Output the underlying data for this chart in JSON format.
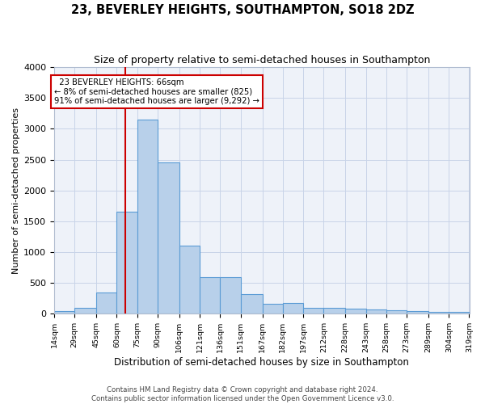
{
  "title": "23, BEVERLEY HEIGHTS, SOUTHAMPTON, SO18 2DZ",
  "subtitle": "Size of property relative to semi-detached houses in Southampton",
  "xlabel": "Distribution of semi-detached houses by size in Southampton",
  "ylabel": "Number of semi-detached properties",
  "footer1": "Contains HM Land Registry data © Crown copyright and database right 2024.",
  "footer2": "Contains public sector information licensed under the Open Government Licence v3.0.",
  "property_size": 66,
  "property_label": "23 BEVERLEY HEIGHTS: 66sqm",
  "pct_smaller": 8,
  "count_smaller": 825,
  "pct_larger": 91,
  "count_larger": 9292,
  "bar_color": "#b8d0ea",
  "bar_edge_color": "#5b9bd5",
  "vline_color": "#cc0000",
  "annotation_box_color": "#cc0000",
  "ylim": [
    0,
    4000
  ],
  "yticks": [
    0,
    500,
    1000,
    1500,
    2000,
    2500,
    3000,
    3500,
    4000
  ],
  "bin_edges": [
    14,
    29,
    45,
    60,
    75,
    90,
    106,
    121,
    136,
    151,
    167,
    182,
    197,
    212,
    228,
    243,
    258,
    273,
    289,
    304,
    319
  ],
  "bin_labels": [
    "14sqm",
    "29sqm",
    "45sqm",
    "60sqm",
    "75sqm",
    "90sqm",
    "106sqm",
    "121sqm",
    "136sqm",
    "151sqm",
    "167sqm",
    "182sqm",
    "197sqm",
    "212sqm",
    "228sqm",
    "243sqm",
    "258sqm",
    "273sqm",
    "289sqm",
    "304sqm",
    "319sqm"
  ],
  "counts": [
    50,
    100,
    350,
    1650,
    3150,
    2450,
    1100,
    600,
    600,
    320,
    160,
    170,
    100,
    100,
    80,
    70,
    55,
    50,
    30,
    25
  ]
}
